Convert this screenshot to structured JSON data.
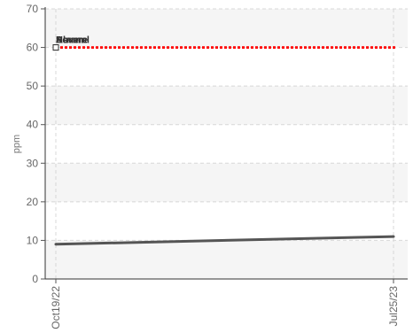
{
  "chart_data": {
    "type": "line",
    "ylabel": "ppm",
    "ylim": [
      0,
      70
    ],
    "yticks": [
      0,
      10,
      20,
      30,
      40,
      50,
      60,
      70
    ],
    "x": [
      "Oct19/22",
      "Jul25/23"
    ],
    "xticks": [
      "Oct19/22",
      "Jul25/23"
    ],
    "series": [
      {
        "values": [
          9,
          11
        ],
        "color": "#555555"
      }
    ],
    "thresholds": [
      {
        "label": "Severe",
        "value": 60,
        "color": "#ff0000"
      },
      {
        "label": "Alarm",
        "value": 60,
        "color": "#ff0000"
      },
      {
        "label": "Normal",
        "value": 60,
        "color": "#ff0000"
      }
    ],
    "grid": true,
    "banding": true
  }
}
